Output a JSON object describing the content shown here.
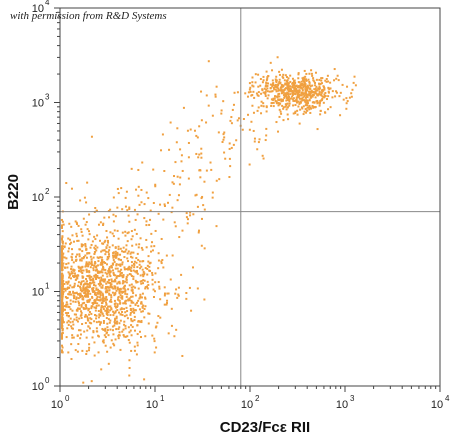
{
  "watermark": "with permission from R&D Systems",
  "chart_data": {
    "type": "scatter",
    "title": "",
    "xlabel": "CD23/Fcε RII",
    "ylabel": "B220",
    "xscale": "log",
    "yscale": "log",
    "xlim": [
      1,
      10000
    ],
    "ylim": [
      1,
      10000
    ],
    "x_ticks": [
      {
        "value": 1,
        "base": "10",
        "exp": "0"
      },
      {
        "value": 10,
        "base": "10",
        "exp": "1"
      },
      {
        "value": 100,
        "base": "10",
        "exp": "2"
      },
      {
        "value": 1000,
        "base": "10",
        "exp": "3"
      },
      {
        "value": 10000,
        "base": "10",
        "exp": "4"
      }
    ],
    "y_ticks": [
      {
        "value": 1,
        "base": "10",
        "exp": "0"
      },
      {
        "value": 10,
        "base": "10",
        "exp": "1"
      },
      {
        "value": 100,
        "base": "10",
        "exp": "2"
      },
      {
        "value": 1000,
        "base": "10",
        "exp": "3"
      },
      {
        "value": 10000,
        "base": "10",
        "exp": "4"
      }
    ],
    "quadrant_gate": {
      "x": 80,
      "y": 70
    },
    "grid": false,
    "marker_color": "#f0a040",
    "populations": [
      {
        "center_x": 2.5,
        "center_y": 11,
        "spread_x_decades": 0.35,
        "spread_y_decades": 0.32,
        "count": 1400
      },
      {
        "center_x": 300,
        "center_y": 1300,
        "spread_x_decades": 0.22,
        "spread_y_decades": 0.1,
        "count": 600
      }
    ]
  }
}
